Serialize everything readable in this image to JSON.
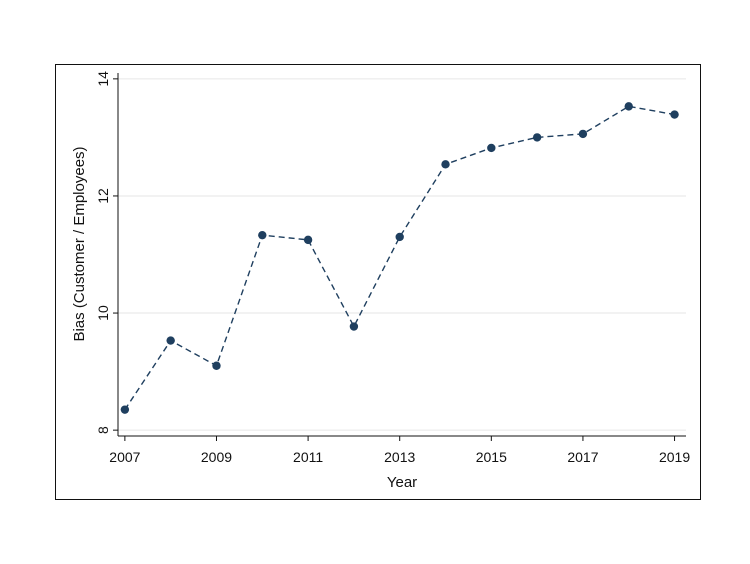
{
  "chart_data": {
    "type": "line",
    "title": "",
    "xlabel": "Year",
    "ylabel": "Bias (Customer / Employees)",
    "x": [
      2007,
      2008,
      2009,
      2010,
      2011,
      2012,
      2013,
      2014,
      2015,
      2016,
      2017,
      2018,
      2019
    ],
    "series": [
      {
        "values": [
          8.35,
          9.53,
          9.1,
          11.33,
          11.25,
          9.77,
          11.3,
          12.54,
          12.82,
          13.0,
          13.06,
          13.53,
          13.39
        ]
      }
    ],
    "xlim": [
      2006.85,
      2019.25
    ],
    "ylim": [
      7.9,
      14.1
    ],
    "x_ticks": [
      2007,
      2009,
      2011,
      2013,
      2015,
      2017,
      2019
    ],
    "y_ticks": [
      8,
      10,
      12,
      14
    ],
    "x_tick_labels": [
      "2007",
      "2009",
      "2011",
      "2013",
      "2015",
      "2017",
      "2019"
    ],
    "y_tick_labels": [
      "8",
      "10",
      "12",
      "14"
    ],
    "grid": true,
    "line_style": "dashed",
    "marker": "circle",
    "colors": {
      "series": "#1f3f5f",
      "grid": "#e6e6e6",
      "axis": "#111111"
    }
  }
}
